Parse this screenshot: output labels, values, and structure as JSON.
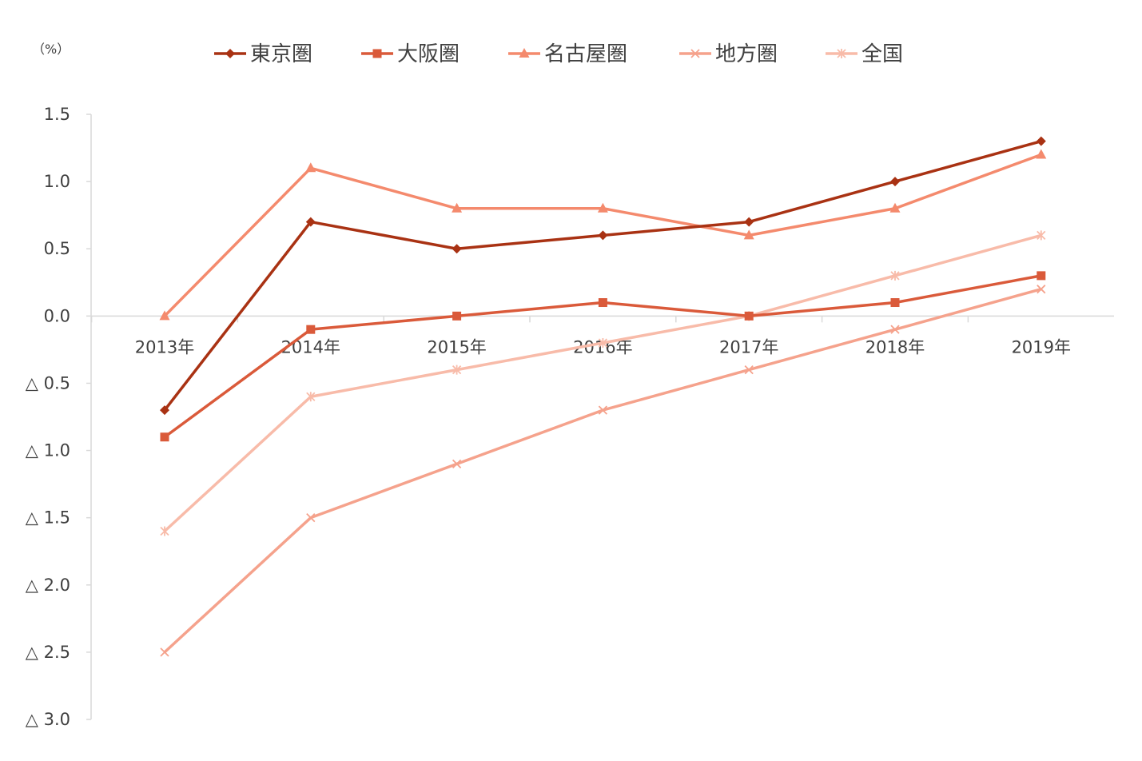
{
  "chart_data": {
    "type": "line",
    "title": "",
    "unit_label": "（%）",
    "xlabel": "",
    "ylabel": "",
    "categories": [
      "2013年",
      "2014年",
      "2015年",
      "2016年",
      "2017年",
      "2018年",
      "2019年"
    ],
    "ylim": [
      -3.0,
      1.5
    ],
    "y_ticks": [
      1.5,
      1.0,
      0.5,
      0.0,
      -0.5,
      -1.0,
      -1.5,
      -2.0,
      -2.5,
      -3.0
    ],
    "y_tick_labels": [
      "1.5",
      "1.0",
      "0.5",
      "0.0",
      "△ 0.5",
      "△ 1.0",
      "△ 1.5",
      "△ 2.0",
      "△ 2.5",
      "△ 3.0"
    ],
    "grid": false,
    "legend_position": "top",
    "series": [
      {
        "name": "東京圏",
        "color": "#A93213",
        "marker": "diamond",
        "values": [
          -0.7,
          0.7,
          0.5,
          0.6,
          0.7,
          1.0,
          1.3
        ]
      },
      {
        "name": "大阪圏",
        "color": "#DA5A3A",
        "marker": "square",
        "values": [
          -0.9,
          -0.1,
          0.0,
          0.1,
          0.0,
          0.1,
          0.3
        ]
      },
      {
        "name": "名古屋圏",
        "color": "#F48A6D",
        "marker": "triangle",
        "values": [
          0.0,
          1.1,
          0.8,
          0.8,
          0.6,
          0.8,
          1.2
        ]
      },
      {
        "name": "地方圏",
        "color": "#F5A28C",
        "marker": "x",
        "values": [
          -2.5,
          -1.5,
          -1.1,
          -0.7,
          -0.4,
          -0.1,
          0.2
        ]
      },
      {
        "name": "全国",
        "color": "#F8BBA9",
        "marker": "star",
        "values": [
          -1.6,
          -0.6,
          -0.4,
          -0.2,
          0.0,
          0.3,
          0.6
        ]
      }
    ]
  }
}
